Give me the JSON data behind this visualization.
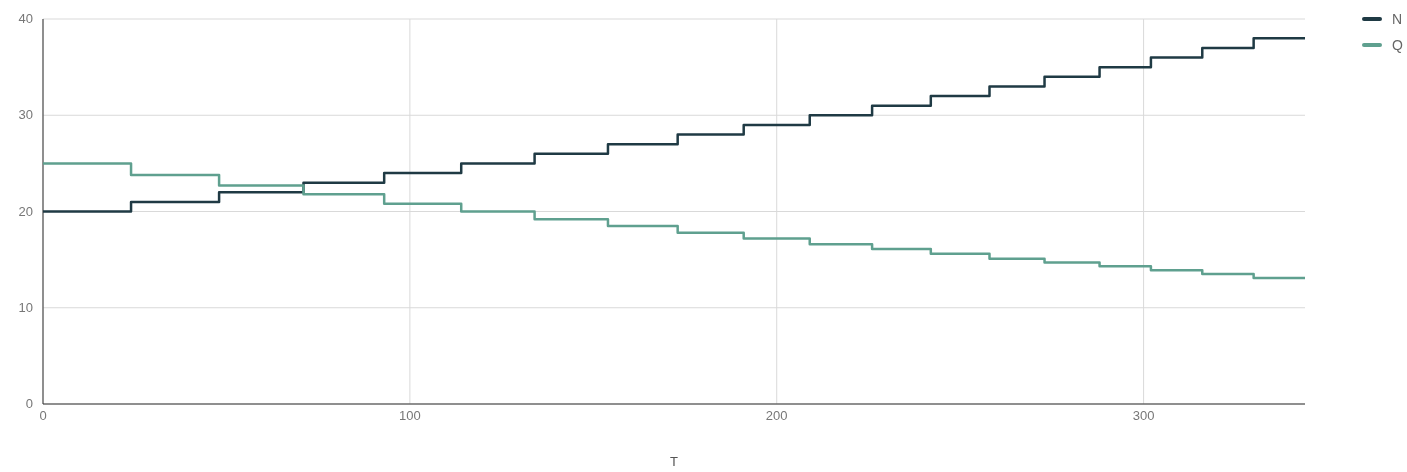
{
  "chart_data": {
    "type": "step",
    "xlabel": "T",
    "xlim": [
      0,
      344
    ],
    "xticks": [
      0,
      100,
      200,
      300
    ],
    "ylim": [
      0,
      40
    ],
    "yticks": [
      0,
      10,
      20,
      30,
      40
    ],
    "grid": true,
    "legend": "top right",
    "line_style": "solid",
    "x": [
      0,
      24,
      48,
      71,
      93,
      114,
      134,
      154,
      173,
      191,
      209,
      226,
      242,
      258,
      273,
      288,
      302,
      316,
      330,
      344
    ],
    "series": [
      {
        "name": "N",
        "color": "#1f3a44",
        "values": [
          20,
          21,
          22,
          23,
          24,
          25,
          26,
          27,
          28,
          29,
          30,
          31,
          32,
          33,
          34,
          35,
          36,
          37,
          38,
          38
        ]
      },
      {
        "name": "Q",
        "color": "#5fa08f",
        "values": [
          25,
          23.8,
          22.7,
          21.8,
          20.8,
          20,
          19.2,
          18.5,
          17.8,
          17.2,
          16.6,
          16.1,
          15.6,
          15.1,
          14.7,
          14.3,
          13.9,
          13.5,
          13.1,
          13.1
        ]
      }
    ]
  }
}
